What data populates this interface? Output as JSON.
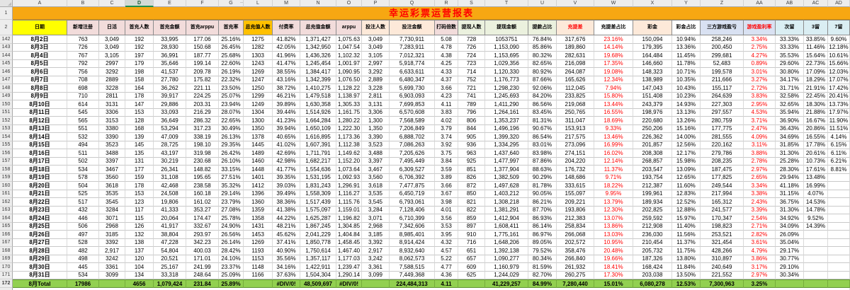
{
  "sheet": {
    "title": "幸运彩票运营报表"
  },
  "gutter": {
    "row1": "1",
    "row2": "2"
  },
  "selected_column": "D",
  "hidden_columns_marker": "‥",
  "colors": {
    "title_bg": "#F7A712",
    "title_text": "#FF0000",
    "date_header_bg": "#FFFF00",
    "total_row_bg": "#92D050",
    "negative_text": "#FF0000",
    "orange_header": "#FFC000"
  },
  "columns": [
    {
      "letter": "A",
      "label": "日期",
      "header_bg": "#FFFF00"
    },
    {
      "letter": "B",
      "label": "新增注册",
      "header_bg": "#F2DCDB"
    },
    {
      "letter": "C",
      "label": "日活",
      "header_bg": "#F2DCDB"
    },
    {
      "letter": "D",
      "label": "首充人数",
      "header_bg": "#F2DCDB"
    },
    {
      "letter": "E",
      "label": "首充金额",
      "header_bg": "#F2DCDB"
    },
    {
      "letter": "F",
      "label": "首充arppu",
      "header_bg": "#F2DCDB"
    },
    {
      "letter": "G",
      "label": "首充率",
      "header_bg": "#F2DCDB"
    },
    {
      "letter": "L",
      "label": "总充值人数",
      "header_bg": "#FFC000"
    },
    {
      "letter": "M",
      "label": "付费率",
      "header_bg": "#F2DCDB"
    },
    {
      "letter": "N",
      "label": "总充值金额",
      "header_bg": "#F2DCDB"
    },
    {
      "letter": "O",
      "label": "arppu",
      "header_bg": "#F2DCDB"
    },
    {
      "letter": "P",
      "label": "投注人数",
      "header_bg": "#FDE9D9"
    },
    {
      "letter": "Q",
      "label": "投注金额",
      "header_bg": "#FDE9D9"
    },
    {
      "letter": "R",
      "label": "打码倍数",
      "header_bg": "#F2DCDB"
    },
    {
      "letter": "S",
      "label": "提现人数",
      "header_bg": "#EBF1DE"
    },
    {
      "letter": "T",
      "label": "提现金额",
      "header_bg": "#EBF1DE"
    },
    {
      "letter": "U",
      "label": "提款占比",
      "header_bg": "#EBF1DE"
    },
    {
      "letter": "V",
      "label": "充提差",
      "header_bg": "#FDE9D9",
      "header_color": "#FF0000"
    },
    {
      "letter": "W",
      "label": "充提差占比",
      "header_bg": "#FFFFFF",
      "value_color": "#FF0000"
    },
    {
      "letter": "X",
      "label": "彩金",
      "header_bg": "#FDE9D9"
    },
    {
      "letter": "Y",
      "label": "彩金占比",
      "header_bg": "#FFFFFF"
    },
    {
      "letter": "Z",
      "label": "三方游戏盈亏",
      "header_bg": "#D9E1F2"
    },
    {
      "letter": "AA",
      "label": "游戏盈利率",
      "header_bg": "#D9E1F2",
      "header_color": "#FF0000",
      "value_color": "#FF0000"
    },
    {
      "letter": "AB",
      "label": "次留",
      "header_bg": "#DAEEF3"
    },
    {
      "letter": "AC",
      "label": "3留",
      "header_bg": "#DAEEF3"
    },
    {
      "letter": "AD",
      "label": "7留",
      "header_bg": "#DAEEF3"
    }
  ],
  "rows": [
    {
      "num": "142",
      "values": [
        "8月2日",
        "763",
        "3,049",
        "192",
        "33,995",
        "177.06",
        "25.16%",
        "1275",
        "41.82%",
        "1,371,427",
        "1,075.63",
        "3,049",
        "7,730,911",
        "5.08",
        "728",
        "1053751",
        "76.84%",
        "317,676",
        "23.16%",
        "150,094",
        "10.94%",
        "258,246",
        "3.34%",
        "33.33%",
        "33.85%",
        "9.60%"
      ]
    },
    {
      "num": "143",
      "values": [
        "8月3日",
        "726",
        "3,049",
        "192",
        "28,930",
        "150.68",
        "26.45%",
        "1282",
        "42.05%",
        "1,342,950",
        "1,047.54",
        "3,049",
        "7,283,911",
        "4.78",
        "726",
        "1,153,090",
        "85.86%",
        "189,860",
        "14.14%",
        "179,395",
        "13.36%",
        "200,450",
        "2.75%",
        "33.33%",
        "11.46%",
        "12.18%"
      ]
    },
    {
      "num": "144",
      "values": [
        "8月4日",
        "767",
        "3,105",
        "197",
        "36,991",
        "187.77",
        "25.68%",
        "1303",
        "41.96%",
        "1,436,326",
        "1,102.32",
        "3,105",
        "7,012,321",
        "4.38",
        "724",
        "1,153,695",
        "80.32%",
        "282,631",
        "19.68%",
        "164,484",
        "11.45%",
        "299,681",
        "4.27%",
        "35.53%",
        "15.64%",
        "10.61%"
      ]
    },
    {
      "num": "145",
      "values": [
        "8月5日",
        "792",
        "2997",
        "179",
        "35,646",
        "199.14",
        "22.60%",
        "1243",
        "41.47%",
        "1,245,454",
        "1,001.97",
        "2,997",
        "5,918,774",
        "4.25",
        "723",
        "1,029,356",
        "82.65%",
        "216,098",
        "17.35%",
        "146,660",
        "11.78%",
        "52,483",
        "0.89%",
        "29.60%",
        "22.73%",
        "15.66%"
      ]
    },
    {
      "num": "146",
      "values": [
        "8月6日",
        "756",
        "3292",
        "198",
        "41,537",
        "209.78",
        "26.19%",
        "1269",
        "38.55%",
        "1,384,417",
        "1,090.95",
        "3,292",
        "6,633,611",
        "4.33",
        "714",
        "1,120,330",
        "80.92%",
        "264,087",
        "19.08%",
        "148,323",
        "10.71%",
        "199,578",
        "3.01%",
        "30.80%",
        "17.09%",
        "12.03%"
      ]
    },
    {
      "num": "147",
      "values": [
        "8月7日",
        "708",
        "2889",
        "158",
        "27,780",
        "175.82",
        "22.32%",
        "1247",
        "43.16%",
        "1,342,399",
        "1,076.50",
        "2,889",
        "6,480,347",
        "4.37",
        "752",
        "1,176,773",
        "87.66%",
        "165,626",
        "12.34%",
        "138,989",
        "10.35%",
        "211,666",
        "3.27%",
        "34.17%",
        "18.29%",
        "17.07%"
      ]
    },
    {
      "num": "148",
      "values": [
        "8月8日",
        "698",
        "3228",
        "164",
        "36,262",
        "221.11",
        "23.50%",
        "1250",
        "38.72%",
        "1,410,275",
        "1,128.22",
        "3,228",
        "5,699,730",
        "3.66",
        "721",
        "1,298,230",
        "92.06%",
        "112,045",
        "7.94%",
        "147,043",
        "10.43%",
        "155,117",
        "2.72%",
        "31.71%",
        "21.91%",
        "17.42%"
      ]
    },
    {
      "num": "149",
      "values": [
        "8月9日",
        "710",
        "2811",
        "178",
        "39,917",
        "224.25",
        "25.07%",
        "1299",
        "46.21%",
        "1,479,518",
        "1,138.97",
        "2,811",
        "6,903,093",
        "4.23",
        "741",
        "1,245,693",
        "84.20%",
        "233,825",
        "15.80%",
        "151,408",
        "10.23%",
        "264,639",
        "3.83%",
        "32.58%",
        "22.45%",
        "20.41%"
      ]
    },
    {
      "num": "150",
      "values": [
        "8月10日",
        "614",
        "3131",
        "147",
        "29,886",
        "203.31",
        "23.94%",
        "1249",
        "39.89%",
        "1,630,358",
        "1,305.33",
        "3,131",
        "7,699,853",
        "4.11",
        "789",
        "1,411,290",
        "86.56%",
        "219,068",
        "13.44%",
        "243,379",
        "14.93%",
        "227,303",
        "2.95%",
        "32.65%",
        "18.30%",
        "13.73%"
      ]
    },
    {
      "num": "151",
      "values": [
        "8月11日",
        "545",
        "3306",
        "153",
        "33,093",
        "216.29",
        "28.07%",
        "1304",
        "39.44%",
        "1,514,926",
        "1,161.75",
        "3,306",
        "6,570,608",
        "3.83",
        "796",
        "1,264,161",
        "83.45%",
        "250,765",
        "16.55%",
        "198,976",
        "13.13%",
        "297,557",
        "4.53%",
        "35.94%",
        "21.88%",
        "17.97%"
      ]
    },
    {
      "num": "152",
      "values": [
        "8月12日",
        "565",
        "3153",
        "128",
        "36,649",
        "286.32",
        "22.65%",
        "1300",
        "41.23%",
        "1,664,284",
        "1,280.22",
        "1,300",
        "7,568,589",
        "4.02",
        "806",
        "1,353,237",
        "81.31%",
        "311,047",
        "18.69%",
        "220,680",
        "13.26%",
        "280,759",
        "3.71%",
        "36.90%",
        "16.67%",
        "11.90%"
      ]
    },
    {
      "num": "153",
      "values": [
        "8月13日",
        "551",
        "3380",
        "168",
        "53,294",
        "317.23",
        "30.49%",
        "1350",
        "39.94%",
        "1,650,109",
        "1,222.30",
        "1,350",
        "7,206,849",
        "3.79",
        "844",
        "1,496,196",
        "90.67%",
        "153,913",
        "9.33%",
        "250,206",
        "15.16%",
        "177,775",
        "2.47%",
        "36.43%",
        "20.86%",
        "11.51%"
      ]
    },
    {
      "num": "154",
      "values": [
        "8月14日",
        "532",
        "3390",
        "139",
        "47,009",
        "338.19",
        "26.13%",
        "1378",
        "40.65%",
        "1,616,895",
        "1,173.36",
        "3,390",
        "6,888,702",
        "3.74",
        "905",
        "1,399,320",
        "86.54%",
        "217,575",
        "13.46%",
        "226,362",
        "14.00%",
        "281,555",
        "4.09%",
        "34.69%",
        "16.55%",
        "4.14%"
      ]
    },
    {
      "num": "155",
      "values": [
        "8月15日",
        "494",
        "3523",
        "145",
        "28,725",
        "198.10",
        "29.35%",
        "1445",
        "41.02%",
        "1,607,391",
        "1,112.38",
        "3,523",
        "7,086,263",
        "3.92",
        "936",
        "1,334,295",
        "83.01%",
        "273,096",
        "16.99%",
        "201,857",
        "12.56%",
        "220,162",
        "3.11%",
        "31.85%",
        "17.78%",
        "6.15%"
      ]
    },
    {
      "num": "156",
      "values": [
        "8月16日",
        "511",
        "3488",
        "135",
        "43,197",
        "319.98",
        "26.42%",
        "1489",
        "42.69%",
        "1,711,791",
        "1,149.62",
        "3,488",
        "7,205,626",
        "3.75",
        "963",
        "1,437,640",
        "83.98%",
        "274,151",
        "16.02%",
        "208,308",
        "12.17%",
        "279,786",
        "3.88%",
        "31.30%",
        "20.61%",
        "6.11%"
      ]
    },
    {
      "num": "157",
      "values": [
        "8月17日",
        "502",
        "3397",
        "131",
        "30,219",
        "230.68",
        "26.10%",
        "1460",
        "42.98%",
        "1,682,217",
        "1,152.20",
        "3,397",
        "7,495,449",
        "3.84",
        "925",
        "1,477,997",
        "87.86%",
        "204,220",
        "12.14%",
        "268,857",
        "15.98%",
        "208,235",
        "2.78%",
        "25.28%",
        "10.73%",
        "6.21%"
      ]
    },
    {
      "num": "158",
      "values": [
        "8月18日",
        "534",
        "3467",
        "177",
        "26,341",
        "148.82",
        "33.15%",
        "1448",
        "41.77%",
        "1,554,636",
        "1,073.64",
        "3,467",
        "6,309,527",
        "3.59",
        "851",
        "1,377,904",
        "88.63%",
        "176,732",
        "11.37%",
        "203,547",
        "13.09%",
        "187,475",
        "2.97%",
        "28.30%",
        "17.61%",
        "8.81%"
      ]
    },
    {
      "num": "159",
      "values": [
        "8月19日",
        "578",
        "3560",
        "159",
        "31,108",
        "195.65",
        "27.51%",
        "1401",
        "39.35%",
        "1,531,195",
        "1,092.93",
        "3,560",
        "6,706,392",
        "3.89",
        "826",
        "1,382,509",
        "90.29%",
        "148,686",
        "9.71%",
        "193,754",
        "12.65%",
        "177,825",
        "2.65%",
        "29.94%",
        "13.48%",
        ""
      ]
    },
    {
      "num": "160",
      "values": [
        "8月20日",
        "504",
        "3618",
        "178",
        "42,468",
        "238.58",
        "35.32%",
        "1412",
        "39.03%",
        "1,831,243",
        "1,296.91",
        "3,618",
        "7,477,875",
        "3.66",
        "872",
        "1,497,628",
        "81.78%",
        "333,615",
        "18.22%",
        "212,387",
        "11.60%",
        "249,544",
        "3.34%",
        "41.18%",
        "16.99%",
        ""
      ]
    },
    {
      "num": "161",
      "values": [
        "8月21日",
        "525",
        "3535",
        "153",
        "24,508",
        "160.18",
        "29.14%",
        "1396",
        "39.49%",
        "1,558,309",
        "1,116.27",
        "3,535",
        "6,450,719",
        "3.67",
        "850",
        "1,403,212",
        "90.05%",
        "155,097",
        "9.95%",
        "199,961",
        "12.83%",
        "217,994",
        "3.38%",
        "31.15%",
        "4.07%",
        ""
      ]
    },
    {
      "num": "162",
      "values": [
        "8月22日",
        "517",
        "3545",
        "123",
        "19,806",
        "161.02",
        "23.79%",
        "1360",
        "38.36%",
        "1,517,439",
        "1,115.76",
        "3,545",
        "6,793,061",
        "3.98",
        "821",
        "1,308,218",
        "86.21%",
        "209,221",
        "13.79%",
        "189,934",
        "12.52%",
        "165,312",
        "2.43%",
        "36.75%",
        "14.53%",
        ""
      ]
    },
    {
      "num": "163",
      "values": [
        "8月23日",
        "432",
        "3284",
        "117",
        "41,333",
        "353.27",
        "27.08%",
        "1359",
        "41.38%",
        "1,575,097",
        "1,159.01",
        "3,284",
        "7,128,406",
        "4.01",
        "822",
        "1,381,291",
        "87.70%",
        "193,806",
        "12.30%",
        "202,825",
        "12.88%",
        "241,577",
        "3.39%",
        "31.30%",
        "14.78%",
        ""
      ]
    },
    {
      "num": "164",
      "values": [
        "8月24日",
        "446",
        "3071",
        "115",
        "20,064",
        "174.47",
        "25.78%",
        "1358",
        "44.22%",
        "1,625,287",
        "1,196.82",
        "3,071",
        "6,710,399",
        "3.56",
        "859",
        "1,412,904",
        "86.93%",
        "212,383",
        "13.07%",
        "259,592",
        "15.97%",
        "170,347",
        "2.54%",
        "34.92%",
        "9.52%",
        ""
      ]
    },
    {
      "num": "165",
      "values": [
        "8月25日",
        "506",
        "2968",
        "126",
        "41,917",
        "332.67",
        "24.90%",
        "1431",
        "48.21%",
        "1,867,245",
        "1,304.85",
        "2,968",
        "7,342,606",
        "3.53",
        "897",
        "1,608,411",
        "86.14%",
        "258,834",
        "13.86%",
        "212,908",
        "11.40%",
        "198,823",
        "2.71%",
        "34.09%",
        "14.39%",
        ""
      ]
    },
    {
      "num": "166",
      "values": [
        "8月26日",
        "497",
        "3185",
        "132",
        "38,804",
        "293.97",
        "26.56%",
        "1453",
        "45.62%",
        "2,041,229",
        "1,404.84",
        "3,185",
        "8,985,401",
        "3.95",
        "910",
        "1,775,161",
        "86.97%",
        "266,068",
        "13.03%",
        "236,030",
        "11.56%",
        "253,521",
        "2.82%",
        "26.09%",
        "",
        ""
      ]
    },
    {
      "num": "167",
      "values": [
        "8月27日",
        "528",
        "3392",
        "138",
        "47,228",
        "342.23",
        "26.14%",
        "1269",
        "37.41%",
        "1,850,778",
        "1,458.45",
        "3,392",
        "8,914,424",
        "4.32",
        "716",
        "1,648,206",
        "89.05%",
        "202,572",
        "10.95%",
        "210,454",
        "11.37%",
        "321,454",
        "3.61%",
        "35.04%",
        "",
        ""
      ]
    },
    {
      "num": "168",
      "values": [
        "8月28日",
        "482",
        "2,917",
        "137",
        "54,804",
        "400.03",
        "28.42%",
        "1193",
        "40.90%",
        "1,750,614",
        "1,467.40",
        "2,917",
        "8,932,640",
        "4.57",
        "651",
        "1,392,138",
        "79.52%",
        "358,476",
        "20.48%",
        "205,732",
        "11.75%",
        "428,266",
        "4.79%",
        "29.17%",
        "",
        ""
      ]
    },
    {
      "num": "169",
      "values": [
        "8月29日",
        "498",
        "3242",
        "120",
        "20,521",
        "171.01",
        "24.10%",
        "1153",
        "35.56%",
        "1,357,117",
        "1,177.03",
        "3,242",
        "8,062,573",
        "5.22",
        "657",
        "1,090,277",
        "80.34%",
        "266,840",
        "19.66%",
        "187,326",
        "13.80%",
        "310,897",
        "3.86%",
        "30.77%",
        "",
        ""
      ]
    },
    {
      "num": "170",
      "values": [
        "8月30日",
        "445",
        "3361",
        "104",
        "25,167",
        "241.99",
        "23.37%",
        "1148",
        "34.16%",
        "1,422,911",
        "1,239.47",
        "3,361",
        "7,588,515",
        "4.77",
        "609",
        "1,160,979",
        "81.59%",
        "261,932",
        "18.41%",
        "168,424",
        "11.84%",
        "240,649",
        "3.17%",
        "29.10%",
        "",
        ""
      ]
    },
    {
      "num": "171",
      "values": [
        "8月31日",
        "534",
        "3099",
        "134",
        "33,318",
        "248.64",
        "25.09%",
        "1166",
        "37.63%",
        "1,504,304",
        "1,290.14",
        "3,099",
        "7,449,368",
        "4.36",
        "625",
        "1,244,029",
        "82.70%",
        "260,275",
        "17.30%",
        "203,038",
        "13.50%",
        "221,552",
        "2.97%",
        "30.34%",
        "",
        ""
      ]
    }
  ],
  "total_row": {
    "num": "172",
    "values": [
      "8月Total",
      "17986",
      "",
      "4656",
      "1,079,424",
      "231.84",
      "25.89%",
      "",
      "#DIV/0!",
      "48,509,697",
      "#DIV/0!",
      "",
      "224,484,313",
      "4.11",
      "",
      "41,229,257",
      "84.99%",
      "7,280,440",
      "15.01%",
      "6,080,278",
      "12.53%",
      "7,300,963",
      "3.25%",
      "",
      "",
      ""
    ]
  }
}
